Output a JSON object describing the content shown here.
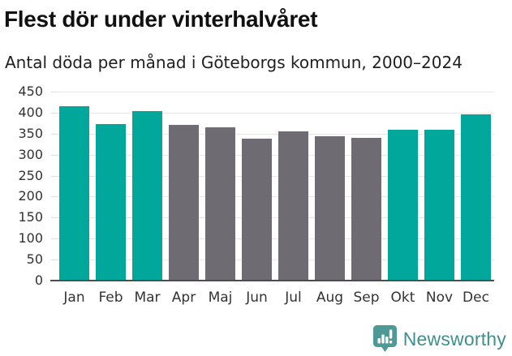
{
  "header": {
    "title": "Flest dör under vinterhalvåret",
    "subtitle": "Antal döda per månad i Göteborgs kommun, 2000–2024"
  },
  "chart_data": {
    "type": "bar",
    "title": "Flest dör under vinterhalvåret",
    "subtitle": "Antal döda per månad i Göteborgs kommun, 2000–2024",
    "categories": [
      "Jan",
      "Feb",
      "Mar",
      "Apr",
      "Maj",
      "Jun",
      "Jul",
      "Aug",
      "Sep",
      "Okt",
      "Nov",
      "Dec"
    ],
    "values": [
      415,
      373,
      404,
      371,
      365,
      338,
      355,
      343,
      340,
      360,
      360,
      395
    ],
    "bar_colors": [
      "winter",
      "winter",
      "winter",
      "summer",
      "summer",
      "summer",
      "summer",
      "summer",
      "summer",
      "winter",
      "winter",
      "winter"
    ],
    "series_colors": {
      "winter": "#00a79a",
      "summer": "#6e6c72"
    },
    "xlabel": "",
    "ylabel": "",
    "ylim": [
      0,
      450
    ],
    "yticks": [
      0,
      50,
      100,
      150,
      200,
      250,
      300,
      350,
      400,
      450
    ],
    "grid": true,
    "legend": false,
    "gridline_color": "#e7e7e7",
    "axis_line_color": "#4d4d4d"
  },
  "footer": {
    "brand": "Newsworthy",
    "brand_color": "#3e8f8d",
    "icon_color": "#4d9996",
    "logo_icon": "newsworthy-speech-bubble-chart-icon"
  }
}
